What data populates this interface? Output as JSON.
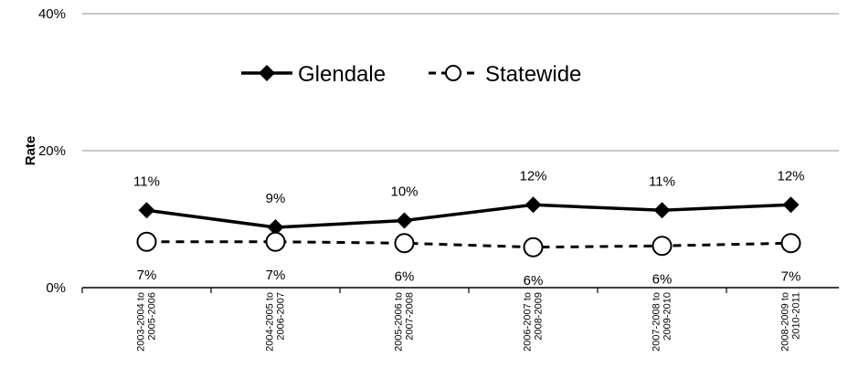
{
  "chart_data": {
    "type": "line",
    "ylabel": "Rate",
    "ylim": [
      0,
      40
    ],
    "yticks": [
      0,
      20,
      40
    ],
    "yticks_format": "percent",
    "grid": true,
    "legend_position": "top-center",
    "categories": [
      [
        "2003-2004 to",
        "2005-2006"
      ],
      [
        "2004-2005 to",
        "2006-2007"
      ],
      [
        "2005-2006 to",
        "2007-2008"
      ],
      [
        "2006-2007 to",
        "2008-2009"
      ],
      [
        "2007-2008 to",
        "2009-2010"
      ],
      [
        "2008-2009 to",
        "2010-2011"
      ]
    ],
    "series": [
      {
        "name": "Glendale",
        "values": [
          11.3,
          8.8,
          9.8,
          12.1,
          11.3,
          12.1
        ],
        "labels": [
          "11%",
          "9%",
          "10%",
          "12%",
          "11%",
          "12%"
        ],
        "line_style": "solid",
        "marker": "filled-diamond",
        "color": "#000000"
      },
      {
        "name": "Statewide",
        "values": [
          6.7,
          6.7,
          6.5,
          5.9,
          6.1,
          6.5
        ],
        "labels": [
          "7%",
          "7%",
          "6%",
          "6%",
          "6%",
          "7%"
        ],
        "line_style": "dashed",
        "marker": "open-circle",
        "color": "#000000"
      }
    ]
  }
}
